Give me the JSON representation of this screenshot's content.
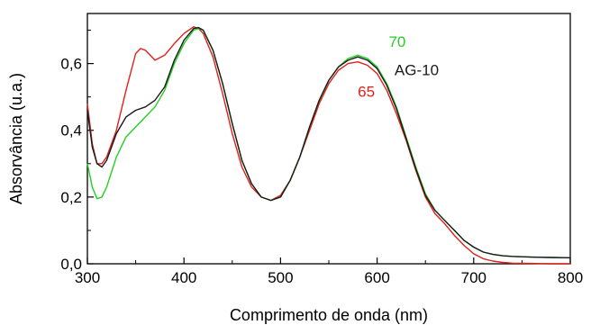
{
  "chart_data": {
    "type": "line",
    "xlabel": "Comprimento de onda (nm)",
    "ylabel": "Absorvância (u.a.)",
    "xlim": [
      300,
      800
    ],
    "ylim": [
      0.0,
      0.75
    ],
    "x_ticks": [
      {
        "value": 300,
        "label": "300"
      },
      {
        "value": 400,
        "label": "400"
      },
      {
        "value": 500,
        "label": "500"
      },
      {
        "value": 600,
        "label": "600"
      },
      {
        "value": 700,
        "label": "700"
      },
      {
        "value": 800,
        "label": "800"
      }
    ],
    "y_ticks": [
      {
        "value": 0.0,
        "label": "0,0"
      },
      {
        "value": 0.2,
        "label": "0,2"
      },
      {
        "value": 0.4,
        "label": "0,4"
      },
      {
        "value": 0.6,
        "label": "0,6"
      }
    ],
    "grid": false,
    "series": [
      {
        "name": "65",
        "color": "#e0201a",
        "x": [
          300,
          305,
          310,
          315,
          320,
          330,
          340,
          350,
          355,
          360,
          365,
          370,
          380,
          390,
          400,
          410,
          415,
          420,
          430,
          440,
          450,
          460,
          470,
          480,
          490,
          500,
          510,
          520,
          530,
          540,
          550,
          560,
          570,
          580,
          590,
          600,
          610,
          620,
          630,
          640,
          650,
          660,
          670,
          680,
          690,
          700,
          710,
          720,
          730,
          740,
          760,
          780,
          800
        ],
        "y": [
          0.48,
          0.36,
          0.3,
          0.3,
          0.32,
          0.4,
          0.52,
          0.63,
          0.645,
          0.64,
          0.625,
          0.61,
          0.625,
          0.66,
          0.69,
          0.71,
          0.705,
          0.69,
          0.62,
          0.51,
          0.39,
          0.29,
          0.23,
          0.2,
          0.19,
          0.205,
          0.25,
          0.32,
          0.4,
          0.48,
          0.54,
          0.58,
          0.6,
          0.605,
          0.595,
          0.57,
          0.52,
          0.45,
          0.37,
          0.28,
          0.2,
          0.15,
          0.12,
          0.085,
          0.055,
          0.03,
          0.015,
          0.008,
          0.004,
          0.002,
          0.001,
          0.0,
          0.0
        ]
      },
      {
        "name": "70",
        "color": "#22d022",
        "x": [
          300,
          305,
          310,
          315,
          320,
          330,
          340,
          350,
          360,
          370,
          380,
          390,
          400,
          410,
          415,
          420,
          430,
          440,
          450,
          460,
          470,
          480,
          490,
          500,
          510,
          520,
          530,
          540,
          550,
          560,
          570,
          580,
          590,
          600,
          610,
          620,
          630,
          640,
          650,
          660,
          670,
          680,
          690,
          700,
          710,
          720,
          730,
          740,
          760,
          780,
          800
        ],
        "y": [
          0.3,
          0.23,
          0.195,
          0.2,
          0.23,
          0.32,
          0.38,
          0.41,
          0.44,
          0.47,
          0.52,
          0.6,
          0.66,
          0.7,
          0.705,
          0.7,
          0.64,
          0.54,
          0.42,
          0.31,
          0.24,
          0.2,
          0.19,
          0.2,
          0.25,
          0.32,
          0.41,
          0.49,
          0.55,
          0.59,
          0.615,
          0.625,
          0.615,
          0.59,
          0.54,
          0.47,
          0.38,
          0.29,
          0.21,
          0.16,
          0.13,
          0.1,
          0.07,
          0.05,
          0.035,
          0.028,
          0.024,
          0.022,
          0.02,
          0.019,
          0.018
        ]
      },
      {
        "name": "AG-10",
        "color": "#1a1a1a",
        "x": [
          300,
          305,
          310,
          315,
          320,
          330,
          340,
          350,
          360,
          370,
          380,
          390,
          400,
          410,
          415,
          420,
          430,
          440,
          450,
          460,
          470,
          480,
          490,
          500,
          510,
          520,
          530,
          540,
          550,
          560,
          570,
          580,
          590,
          600,
          610,
          620,
          630,
          640,
          650,
          660,
          670,
          680,
          690,
          700,
          710,
          720,
          730,
          740,
          760,
          780,
          800
        ],
        "y": [
          0.46,
          0.35,
          0.3,
          0.29,
          0.31,
          0.39,
          0.44,
          0.46,
          0.47,
          0.49,
          0.53,
          0.61,
          0.67,
          0.705,
          0.708,
          0.7,
          0.64,
          0.54,
          0.42,
          0.31,
          0.24,
          0.2,
          0.19,
          0.2,
          0.25,
          0.32,
          0.41,
          0.49,
          0.55,
          0.59,
          0.61,
          0.62,
          0.61,
          0.585,
          0.535,
          0.465,
          0.375,
          0.285,
          0.205,
          0.16,
          0.13,
          0.1,
          0.07,
          0.05,
          0.035,
          0.028,
          0.024,
          0.022,
          0.02,
          0.019,
          0.018
        ]
      }
    ],
    "annotations": [
      {
        "text": "70",
        "series": "70",
        "color": "#22d022",
        "x": 612,
        "y": 0.65
      },
      {
        "text": "AG-10",
        "series": "AG-10",
        "color": "#1a1a1a",
        "x": 618,
        "y": 0.565
      },
      {
        "text": "65",
        "series": "65",
        "color": "#e0201a",
        "x": 580,
        "y": 0.5
      }
    ]
  }
}
